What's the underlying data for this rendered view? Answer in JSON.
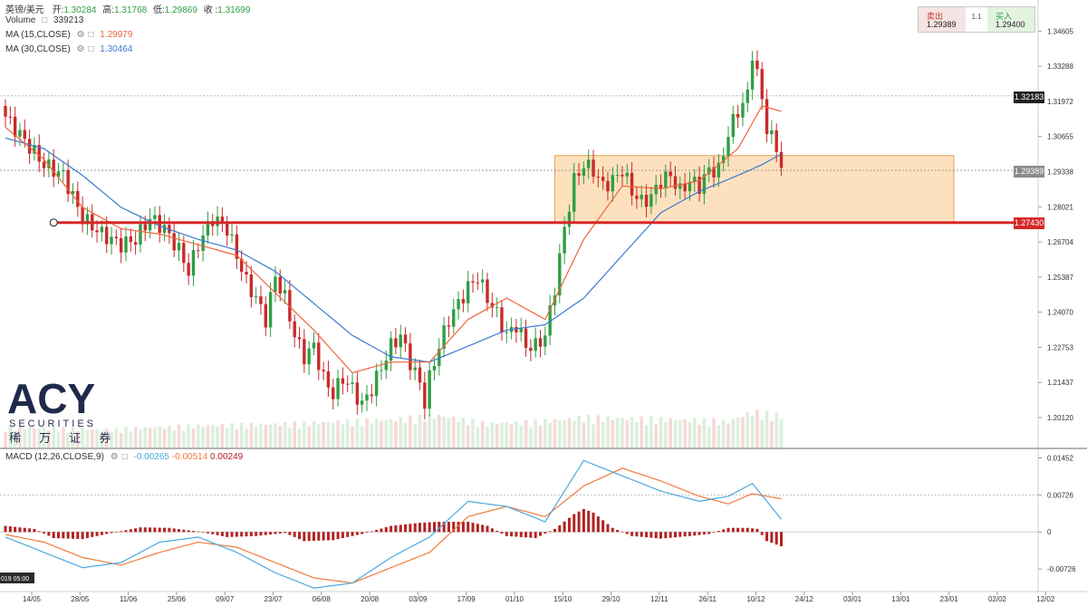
{
  "header": {
    "symbol": "英镑/美元",
    "open_label": "开:",
    "open": "1.30284",
    "high_label": "高:",
    "high": "1.31768",
    "low_label": "低:",
    "low": "1.29869",
    "close_label": "收 :",
    "close": "1.31699",
    "volume_label": "Volume",
    "volume": "339213",
    "ma15_label": "MA (15,CLOSE)",
    "ma15": "1.29979",
    "ma30_label": "MA (30,CLOSE)",
    "ma30": "1.30464"
  },
  "trade_box": {
    "sell_label": "卖出",
    "sell_price": "1.29389",
    "spread": "1.1",
    "buy_label": "买入",
    "buy_price": "1.29400"
  },
  "price_tags": {
    "crosshair": "1.32183",
    "current": "1.29389",
    "support": "1.27430"
  },
  "logo": {
    "brand": "ACY",
    "sub": "SECURITIES",
    "cn": "稀 万 证 券"
  },
  "colors": {
    "up": "#2f9e44",
    "down": "#c92a2a",
    "ma15": "#f0643c",
    "ma30": "#3c78d2",
    "support": "#d62828",
    "zone": "#fcc98a",
    "macd_line": "#4aa8e0",
    "signal_line": "#f27a3a",
    "hist": "#b22222"
  },
  "chart_data": {
    "type": "candlestick",
    "price_axis": {
      "ylim": [
        1.19,
        1.355
      ],
      "ticks": [
        "1.34605",
        "1.33288",
        "1.31972",
        "1.30655",
        "1.29338",
        "1.28021",
        "1.26704",
        "1.25387",
        "1.24070",
        "1.22753",
        "1.21437",
        "1.20120"
      ]
    },
    "macd_axis": {
      "ylim": [
        -0.0115,
        0.0162
      ],
      "ticks": [
        "0.01452",
        "0.00726",
        "0",
        "-0.00726"
      ]
    },
    "macd_label": "MACD (12,26,CLOSE,9)",
    "macd_values": [
      "-0.00265",
      "-0.00514",
      "0.00249"
    ],
    "x_tick_labels": [
      "14/05",
      "28/05",
      "11/06",
      "25/06",
      "09/07",
      "23/07",
      "06/08",
      "20/08",
      "03/09",
      "17/09",
      "01/10",
      "15/10",
      "29/10",
      "12/11",
      "26/11",
      "10/12",
      "24/12",
      "03/01",
      "13/01",
      "23/01",
      "02/02",
      "12/02"
    ],
    "axis_date_stamp": "019  05:00",
    "support_level": 1.2743,
    "resistance_zone": [
      1.2743,
      1.2994
    ],
    "close_path": [
      [
        0,
        1.314
      ],
      [
        4,
        1.305
      ],
      [
        8,
        1.296
      ],
      [
        12,
        1.292
      ],
      [
        16,
        1.276
      ],
      [
        20,
        1.27
      ],
      [
        24,
        1.266
      ],
      [
        27,
        1.268
      ],
      [
        30,
        1.276
      ],
      [
        33,
        1.272
      ],
      [
        36,
        1.264
      ],
      [
        38,
        1.256
      ],
      [
        40,
        1.266
      ],
      [
        43,
        1.276
      ],
      [
        46,
        1.272
      ],
      [
        48,
        1.262
      ],
      [
        50,
        1.252
      ],
      [
        52,
        1.246
      ],
      [
        54,
        1.238
      ],
      [
        56,
        1.254
      ],
      [
        58,
        1.246
      ],
      [
        60,
        1.232
      ],
      [
        62,
        1.224
      ],
      [
        64,
        1.228
      ],
      [
        66,
        1.216
      ],
      [
        68,
        1.21
      ],
      [
        70,
        1.216
      ],
      [
        72,
        1.212
      ],
      [
        74,
        1.206
      ],
      [
        76,
        1.212
      ],
      [
        78,
        1.22
      ],
      [
        80,
        1.228
      ],
      [
        82,
        1.232
      ],
      [
        84,
        1.222
      ],
      [
        86,
        1.214
      ],
      [
        87,
        1.207
      ],
      [
        88,
        1.216
      ],
      [
        90,
        1.228
      ],
      [
        92,
        1.238
      ],
      [
        94,
        1.244
      ],
      [
        96,
        1.25
      ],
      [
        98,
        1.254
      ],
      [
        100,
        1.246
      ],
      [
        102,
        1.24
      ],
      [
        104,
        1.232
      ],
      [
        106,
        1.236
      ],
      [
        108,
        1.228
      ],
      [
        110,
        1.228
      ],
      [
        112,
        1.232
      ],
      [
        114,
        1.25
      ],
      [
        116,
        1.272
      ],
      [
        118,
        1.29
      ],
      [
        120,
        1.296
      ],
      [
        122,
        1.294
      ],
      [
        124,
        1.288
      ],
      [
        126,
        1.29
      ],
      [
        128,
        1.294
      ],
      [
        130,
        1.286
      ],
      [
        132,
        1.282
      ],
      [
        134,
        1.284
      ],
      [
        136,
        1.29
      ],
      [
        138,
        1.292
      ],
      [
        140,
        1.286
      ],
      [
        142,
        1.29
      ],
      [
        144,
        1.288
      ],
      [
        146,
        1.294
      ],
      [
        148,
        1.294
      ],
      [
        149,
        1.3
      ],
      [
        150,
        1.308
      ],
      [
        152,
        1.316
      ],
      [
        154,
        1.322
      ],
      [
        155,
        1.338
      ],
      [
        156,
        1.33
      ],
      [
        157,
        1.32
      ],
      [
        158,
        1.31
      ],
      [
        160,
        1.302
      ],
      [
        161,
        1.296
      ]
    ],
    "ma15_path": [
      [
        0,
        1.31
      ],
      [
        8,
        1.298
      ],
      [
        16,
        1.28
      ],
      [
        24,
        1.272
      ],
      [
        32,
        1.27
      ],
      [
        40,
        1.266
      ],
      [
        48,
        1.262
      ],
      [
        56,
        1.248
      ],
      [
        64,
        1.234
      ],
      [
        72,
        1.218
      ],
      [
        80,
        1.222
      ],
      [
        88,
        1.222
      ],
      [
        96,
        1.238
      ],
      [
        104,
        1.246
      ],
      [
        112,
        1.238
      ],
      [
        120,
        1.268
      ],
      [
        128,
        1.288
      ],
      [
        136,
        1.287
      ],
      [
        144,
        1.29
      ],
      [
        152,
        1.302
      ],
      [
        157,
        1.318
      ],
      [
        161,
        1.316
      ]
    ],
    "ma30_path": [
      [
        0,
        1.306
      ],
      [
        8,
        1.302
      ],
      [
        16,
        1.292
      ],
      [
        24,
        1.28
      ],
      [
        32,
        1.273
      ],
      [
        40,
        1.268
      ],
      [
        48,
        1.264
      ],
      [
        56,
        1.256
      ],
      [
        64,
        1.244
      ],
      [
        72,
        1.232
      ],
      [
        80,
        1.224
      ],
      [
        88,
        1.222
      ],
      [
        96,
        1.228
      ],
      [
        104,
        1.234
      ],
      [
        112,
        1.236
      ],
      [
        120,
        1.246
      ],
      [
        128,
        1.262
      ],
      [
        136,
        1.278
      ],
      [
        144,
        1.286
      ],
      [
        152,
        1.292
      ],
      [
        157,
        1.296
      ],
      [
        161,
        1.3
      ]
    ],
    "macd_line_path": [
      [
        0,
        -0.001
      ],
      [
        8,
        -0.004
      ],
      [
        16,
        -0.007
      ],
      [
        24,
        -0.006
      ],
      [
        32,
        -0.002
      ],
      [
        40,
        -0.001
      ],
      [
        48,
        -0.004
      ],
      [
        56,
        -0.008
      ],
      [
        64,
        -0.011
      ],
      [
        72,
        -0.01
      ],
      [
        80,
        -0.005
      ],
      [
        88,
        -0.001
      ],
      [
        96,
        0.006
      ],
      [
        104,
        0.005
      ],
      [
        112,
        0.002
      ],
      [
        120,
        0.014
      ],
      [
        128,
        0.011
      ],
      [
        136,
        0.008
      ],
      [
        144,
        0.006
      ],
      [
        150,
        0.007
      ],
      [
        155,
        0.0095
      ],
      [
        161,
        0.0025
      ]
    ],
    "signal_line_path": [
      [
        0,
        -0.0005
      ],
      [
        8,
        -0.002
      ],
      [
        16,
        -0.005
      ],
      [
        24,
        -0.0065
      ],
      [
        32,
        -0.004
      ],
      [
        40,
        -0.002
      ],
      [
        48,
        -0.003
      ],
      [
        56,
        -0.006
      ],
      [
        64,
        -0.009
      ],
      [
        72,
        -0.01
      ],
      [
        80,
        -0.007
      ],
      [
        88,
        -0.004
      ],
      [
        96,
        0.003
      ],
      [
        104,
        0.005
      ],
      [
        112,
        0.003
      ],
      [
        120,
        0.009
      ],
      [
        128,
        0.0125
      ],
      [
        136,
        0.01
      ],
      [
        144,
        0.007
      ],
      [
        150,
        0.0055
      ],
      [
        155,
        0.0075
      ],
      [
        161,
        0.0065
      ]
    ],
    "histogram_path": [
      [
        0,
        0.0012
      ],
      [
        6,
        0.0006
      ],
      [
        10,
        -0.0012
      ],
      [
        16,
        -0.0014
      ],
      [
        22,
        -0.0002
      ],
      [
        28,
        0.0009
      ],
      [
        34,
        0.0008
      ],
      [
        40,
        0.0001
      ],
      [
        46,
        -0.001
      ],
      [
        52,
        -0.0008
      ],
      [
        58,
        -0.0002
      ],
      [
        62,
        -0.0018
      ],
      [
        68,
        -0.0016
      ],
      [
        74,
        -0.0004
      ],
      [
        80,
        0.0012
      ],
      [
        86,
        0.0018
      ],
      [
        90,
        0.002
      ],
      [
        96,
        0.002
      ],
      [
        100,
        0.0012
      ],
      [
        104,
        -0.0008
      ],
      [
        110,
        -0.0012
      ],
      [
        114,
        0.0006
      ],
      [
        118,
        0.0035
      ],
      [
        120,
        0.0045
      ],
      [
        122,
        0.0038
      ],
      [
        126,
        0.0008
      ],
      [
        130,
        -0.0008
      ],
      [
        136,
        -0.0013
      ],
      [
        142,
        -0.0008
      ],
      [
        146,
        -0.0004
      ],
      [
        150,
        0.0008
      ],
      [
        154,
        0.0008
      ],
      [
        156,
        0.0006
      ],
      [
        158,
        -0.0018
      ],
      [
        161,
        -0.0028
      ]
    ],
    "volume_profile": [
      [
        0,
        0.5
      ],
      [
        20,
        0.45
      ],
      [
        40,
        0.55
      ],
      [
        60,
        0.6
      ],
      [
        80,
        0.7
      ],
      [
        90,
        0.8
      ],
      [
        100,
        0.6
      ],
      [
        110,
        0.65
      ],
      [
        120,
        0.75
      ],
      [
        140,
        0.7
      ],
      [
        150,
        0.65
      ],
      [
        155,
        0.9
      ],
      [
        161,
        0.8
      ]
    ]
  }
}
